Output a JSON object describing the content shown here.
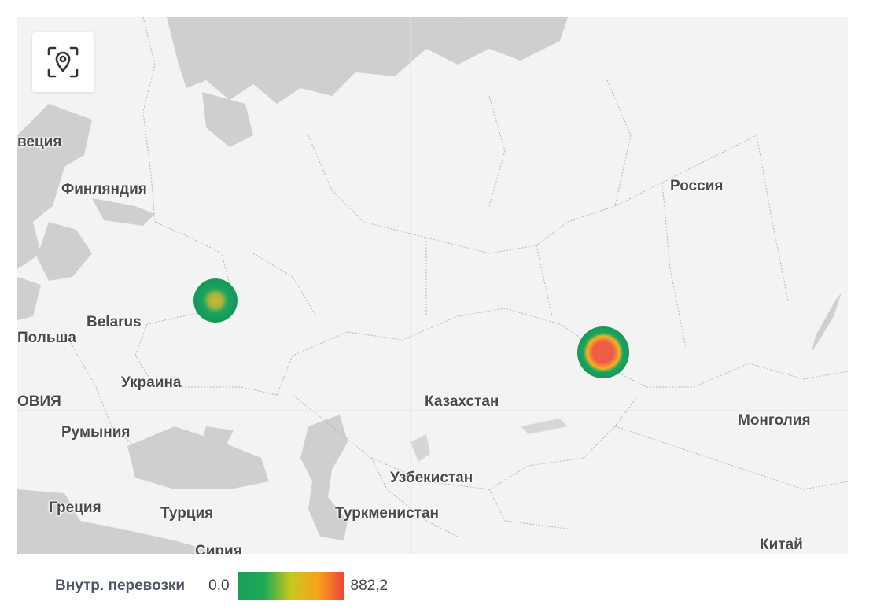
{
  "map": {
    "countries": [
      {
        "id": "sweden",
        "label": "веция"
      },
      {
        "id": "finland",
        "label": "Финляндия"
      },
      {
        "id": "russia",
        "label": "Россия"
      },
      {
        "id": "belarus",
        "label": "Belarus"
      },
      {
        "id": "poland",
        "label": "Польша"
      },
      {
        "id": "ukraine",
        "label": "Украина"
      },
      {
        "id": "moldova",
        "label": "ОВИЯ"
      },
      {
        "id": "romania",
        "label": "Румыния"
      },
      {
        "id": "kazakhstan",
        "label": "Казахстан"
      },
      {
        "id": "mongolia",
        "label": "Монголия"
      },
      {
        "id": "uzbekistan",
        "label": "Узбекистан"
      },
      {
        "id": "greece",
        "label": "Греция"
      },
      {
        "id": "turkey",
        "label": "Турция"
      },
      {
        "id": "turkmenistan",
        "label": "Туркменистан"
      },
      {
        "id": "syria",
        "label": "Сирия"
      },
      {
        "id": "china",
        "label": "Китай"
      }
    ],
    "locate_icon": "map-pin-target-icon",
    "heat_points": [
      {
        "name": "west",
        "value_fraction": 0.35
      },
      {
        "name": "east",
        "value_fraction": 1.0
      }
    ]
  },
  "legend": {
    "title": "Внутр. перевозки",
    "min": "0,0",
    "max": "882,2",
    "colors": [
      "#1a9e5a",
      "#1faa55",
      "#c8c81e",
      "#f7a21a",
      "#f0433a"
    ]
  }
}
